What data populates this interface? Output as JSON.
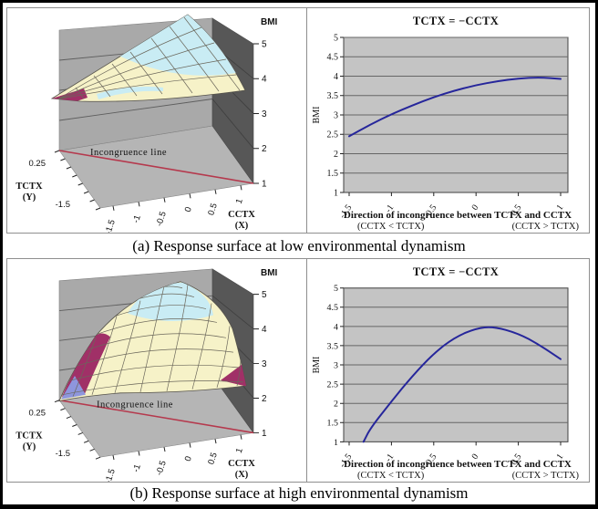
{
  "figure": {
    "caption_a": "(a) Response surface at low environmental dynamism",
    "caption_b": "(b) Response surface at high environmental dynamism"
  },
  "surface3d": {
    "bmi_label": "BMI",
    "z_ticks": [
      "5",
      "4",
      "3",
      "2",
      "1"
    ],
    "y_axis": {
      "label_line1": "TCTX",
      "label_line2": "(Y)",
      "tick_top": "0.25",
      "tick_bottom": "-1.5"
    },
    "x_axis": {
      "label_line1": "CCTX",
      "label_line2": "(X)",
      "ticks": [
        "-1.5",
        "-1",
        "-0.5",
        "0",
        "0.5",
        "1"
      ]
    },
    "floor_label": "Incongruence line"
  },
  "line2d": {
    "title": "TCTX = −CCTX",
    "y_label": "BMI",
    "y_ticks": [
      "5",
      "4.5",
      "4",
      "3.5",
      "3",
      "2.5",
      "2",
      "1.5",
      "1"
    ],
    "x_ticks": [
      "-1.5",
      "-1",
      "-0.5",
      "0",
      "0.5",
      "1"
    ],
    "x_label": "Direction of incongruence between TCTX and CCTX",
    "x_sublabel_left": "(CCTX < TCTX)",
    "x_sublabel_right": "(CCTX > TCTX)"
  },
  "colors": {
    "surface_yellow": "#f6f2c8",
    "surface_cyan": "#c9ecf4",
    "surface_magenta": "#a03067",
    "surface_blue": "#8e96dd",
    "floor_gray": "#b5b5b5",
    "left_wall_gray": "#a9a9a9",
    "right_wall_gray": "#575757",
    "incongruence_line_red": "#b5394d",
    "plot_bg_gray": "#c4c4c4",
    "curve_navy": "#26269b"
  },
  "chart_data": [
    {
      "type": "surface",
      "panel": "a - low environmental dynamism",
      "x_axis": "CCTX (X)",
      "x_ticks": [
        -1.5,
        -1,
        -0.5,
        0,
        0.5,
        1
      ],
      "y_axis": "TCTX (Y)",
      "y_ticks": [
        0.25,
        -1.5
      ],
      "z_axis": "BMI",
      "z_range": [
        1,
        5
      ],
      "annotation": "Incongruence line",
      "shape": "rising ridge: BMI lowest (~2.4, magenta patch) at front-left incongruent corner, rising monotonically toward ~5 at the back congruent corner; cyan band = high BMI, pale yellow = mid BMI",
      "along_incongruence_line": [
        [
          -1.5,
          2.45
        ],
        [
          0,
          3.77
        ],
        [
          1,
          3.93
        ]
      ]
    },
    {
      "type": "line",
      "panel": "a - low environmental dynamism",
      "title": "TCTX = −CCTX",
      "x_label": "Direction of incongruence between TCTX and CCTX",
      "y_label": "BMI",
      "x_range": [
        -1.5,
        1
      ],
      "y_range": [
        1,
        5
      ],
      "grid": "horizontal at 0.5 steps",
      "points": [
        [
          -1.5,
          2.45
        ],
        [
          -1.25,
          2.75
        ],
        [
          -1,
          3.02
        ],
        [
          -0.75,
          3.25
        ],
        [
          -0.5,
          3.46
        ],
        [
          -0.25,
          3.63
        ],
        [
          0,
          3.77
        ],
        [
          0.25,
          3.87
        ],
        [
          0.5,
          3.94
        ],
        [
          0.75,
          3.97
        ],
        [
          1,
          3.93
        ]
      ]
    },
    {
      "type": "surface",
      "panel": "b - high environmental dynamism",
      "x_axis": "CCTX (X)",
      "x_ticks": [
        -1.5,
        -1,
        -0.5,
        0,
        0.5,
        1
      ],
      "y_axis": "TCTX (Y)",
      "y_ticks": [
        0.25,
        -1.5
      ],
      "z_axis": "BMI",
      "z_range": [
        1,
        5
      ],
      "annotation": "Incongruence line",
      "shape": "inverted-U dome: BMI peaks (~5, cyan cap) near the congruence center-back, falling steeply (magenta/blue bands, BMI ~1-2) toward both incongruent corners",
      "along_incongruence_line": [
        [
          -1.33,
          1.0
        ],
        [
          0.2,
          4.0
        ],
        [
          1,
          3.15
        ]
      ]
    },
    {
      "type": "line",
      "panel": "b - high environmental dynamism",
      "title": "TCTX = −CCTX",
      "x_label": "Direction of incongruence between TCTX and CCTX",
      "y_label": "BMI",
      "x_range": [
        -1.5,
        1
      ],
      "y_range": [
        1,
        5
      ],
      "grid": "horizontal at 0.5 steps",
      "points": [
        [
          -1.33,
          1.0
        ],
        [
          -1.25,
          1.35
        ],
        [
          -1,
          2.05
        ],
        [
          -0.75,
          2.72
        ],
        [
          -0.5,
          3.3
        ],
        [
          -0.25,
          3.72
        ],
        [
          0,
          3.95
        ],
        [
          0.2,
          4.0
        ],
        [
          0.5,
          3.82
        ],
        [
          0.75,
          3.52
        ],
        [
          1,
          3.15
        ]
      ]
    }
  ]
}
